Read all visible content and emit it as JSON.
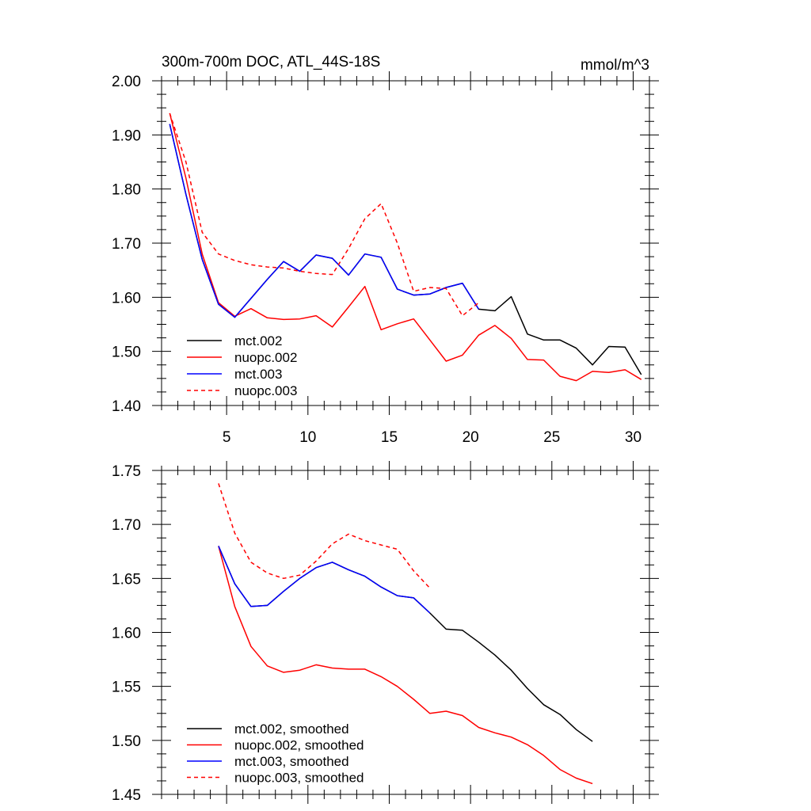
{
  "colors": {
    "black": "#000000",
    "red": "#ff0000",
    "blue": "#0000ff"
  },
  "chart_data": [
    {
      "type": "line",
      "title": "300m-700m DOC, ATL_44S-18S",
      "units": "mmol/m^3",
      "xlim": [
        1,
        31
      ],
      "ylim": [
        1.4,
        2.0
      ],
      "xticks": [
        5,
        10,
        15,
        20,
        25,
        30
      ],
      "xtick_labels": [
        "5",
        "10",
        "15",
        "20",
        "25",
        "30"
      ],
      "yticks": [
        1.4,
        1.5,
        1.6,
        1.7,
        1.8,
        1.9,
        2.0
      ],
      "ytick_labels": [
        "1.40",
        "1.50",
        "1.60",
        "1.70",
        "1.80",
        "1.90",
        "2.00"
      ],
      "legend_position": "bottom-left",
      "series": [
        {
          "name": "mct.002",
          "color": "#000000",
          "dash": "solid",
          "x": [
            1.5,
            2.5,
            3.5,
            4.5,
            5.5,
            6.5,
            7.5,
            8.5,
            9.5,
            10.5,
            11.5,
            12.5,
            13.5,
            14.5,
            15.5,
            16.5,
            17.5,
            18.5,
            19.5,
            20.5,
            21.5,
            22.5,
            23.5,
            24.5,
            25.5,
            26.5,
            27.5,
            28.5,
            29.5,
            30.5
          ],
          "y": [
            1.92,
            1.79,
            1.67,
            1.587,
            1.563,
            1.598,
            1.633,
            1.666,
            1.648,
            1.678,
            1.672,
            1.641,
            1.68,
            1.674,
            1.615,
            1.604,
            1.606,
            1.618,
            1.626,
            1.578,
            1.575,
            1.601,
            1.532,
            1.521,
            1.521,
            1.506,
            1.475,
            1.509,
            1.508,
            1.457
          ]
        },
        {
          "name": "nuopc.002",
          "color": "#ff0000",
          "dash": "solid",
          "x": [
            1.5,
            2.5,
            3.5,
            4.5,
            5.5,
            6.5,
            7.5,
            8.5,
            9.5,
            10.5,
            11.5,
            12.5,
            13.5,
            14.5,
            15.5,
            16.5,
            17.5,
            18.5,
            19.5,
            20.5,
            21.5,
            22.5,
            23.5,
            24.5,
            25.5,
            26.5,
            27.5,
            28.5,
            29.5,
            30.5
          ],
          "y": [
            1.94,
            1.82,
            1.68,
            1.59,
            1.565,
            1.579,
            1.562,
            1.559,
            1.56,
            1.566,
            1.545,
            1.582,
            1.62,
            1.54,
            1.551,
            1.56,
            1.521,
            1.482,
            1.493,
            1.53,
            1.548,
            1.524,
            1.485,
            1.484,
            1.454,
            1.446,
            1.463,
            1.461,
            1.466,
            1.448
          ]
        },
        {
          "name": "mct.003",
          "color": "#0000ff",
          "dash": "solid",
          "x": [
            1.5,
            2.5,
            3.5,
            4.5,
            5.5,
            6.5,
            7.5,
            8.5,
            9.5,
            10.5,
            11.5,
            12.5,
            13.5,
            14.5,
            15.5,
            16.5,
            17.5,
            18.5,
            19.5,
            20.5
          ],
          "y": [
            1.92,
            1.79,
            1.67,
            1.587,
            1.563,
            1.598,
            1.633,
            1.666,
            1.648,
            1.678,
            1.672,
            1.641,
            1.68,
            1.674,
            1.615,
            1.604,
            1.606,
            1.618,
            1.626,
            1.578
          ]
        },
        {
          "name": "nuopc.003",
          "color": "#ff0000",
          "dash": "dashed",
          "x": [
            1.5,
            2.5,
            3.5,
            4.5,
            5.5,
            6.5,
            7.5,
            8.5,
            9.5,
            10.5,
            11.5,
            12.5,
            13.5,
            14.5,
            15.5,
            16.5,
            17.5,
            18.5,
            19.5,
            20.5
          ],
          "y": [
            1.94,
            1.85,
            1.72,
            1.68,
            1.668,
            1.66,
            1.656,
            1.654,
            1.648,
            1.644,
            1.642,
            1.69,
            1.745,
            1.773,
            1.7,
            1.611,
            1.618,
            1.616,
            1.566,
            1.59
          ]
        }
      ]
    },
    {
      "type": "line",
      "xlim": [
        1,
        31
      ],
      "ylim": [
        1.45,
        1.75
      ],
      "xticks": [
        5,
        10,
        15,
        20,
        25,
        30
      ],
      "xtick_labels": [],
      "yticks": [
        1.45,
        1.5,
        1.55,
        1.6,
        1.65,
        1.7,
        1.75
      ],
      "ytick_labels": [
        "1.45",
        "1.50",
        "1.55",
        "1.60",
        "1.65",
        "1.70",
        "1.75"
      ],
      "legend_position": "bottom-left",
      "series": [
        {
          "name": "mct.002, smoothed",
          "color": "#000000",
          "dash": "solid",
          "x": [
            4.5,
            5.5,
            6.5,
            7.5,
            8.5,
            9.5,
            10.5,
            11.5,
            12.5,
            13.5,
            14.5,
            15.5,
            16.5,
            17.5,
            18.5,
            19.5,
            20.5,
            21.5,
            22.5,
            23.5,
            24.5,
            25.5,
            26.5,
            27.5
          ],
          "y": [
            1.68,
            1.645,
            1.624,
            1.625,
            1.638,
            1.65,
            1.66,
            1.665,
            1.658,
            1.652,
            1.642,
            1.634,
            1.632,
            1.618,
            1.603,
            1.602,
            1.591,
            1.579,
            1.565,
            1.548,
            1.533,
            1.524,
            1.51,
            1.499
          ]
        },
        {
          "name": "nuopc.002, smoothed",
          "color": "#ff0000",
          "dash": "solid",
          "x": [
            4.5,
            5.5,
            6.5,
            7.5,
            8.5,
            9.5,
            10.5,
            11.5,
            12.5,
            13.5,
            14.5,
            15.5,
            16.5,
            17.5,
            18.5,
            19.5,
            20.5,
            21.5,
            22.5,
            23.5,
            24.5,
            25.5,
            26.5,
            27.5
          ],
          "y": [
            1.68,
            1.624,
            1.587,
            1.569,
            1.563,
            1.565,
            1.57,
            1.567,
            1.566,
            1.566,
            1.559,
            1.55,
            1.538,
            1.525,
            1.527,
            1.523,
            1.512,
            1.507,
            1.503,
            1.496,
            1.486,
            1.473,
            1.465,
            1.46
          ]
        },
        {
          "name": "mct.003, smoothed",
          "color": "#0000ff",
          "dash": "solid",
          "x": [
            4.5,
            5.5,
            6.5,
            7.5,
            8.5,
            9.5,
            10.5,
            11.5,
            12.5,
            13.5,
            14.5,
            15.5,
            16.5,
            17.5
          ],
          "y": [
            1.68,
            1.645,
            1.624,
            1.625,
            1.638,
            1.65,
            1.66,
            1.665,
            1.658,
            1.652,
            1.642,
            1.634,
            1.632,
            1.618
          ]
        },
        {
          "name": "nuopc.003, smoothed",
          "color": "#ff0000",
          "dash": "dashed",
          "x": [
            4.5,
            5.5,
            6.5,
            7.5,
            8.5,
            9.5,
            10.5,
            11.5,
            12.5,
            13.5,
            14.5,
            15.5,
            16.5,
            17.5
          ],
          "y": [
            1.738,
            1.692,
            1.665,
            1.655,
            1.65,
            1.653,
            1.666,
            1.682,
            1.691,
            1.685,
            1.681,
            1.677,
            1.657,
            1.641
          ]
        }
      ]
    }
  ]
}
